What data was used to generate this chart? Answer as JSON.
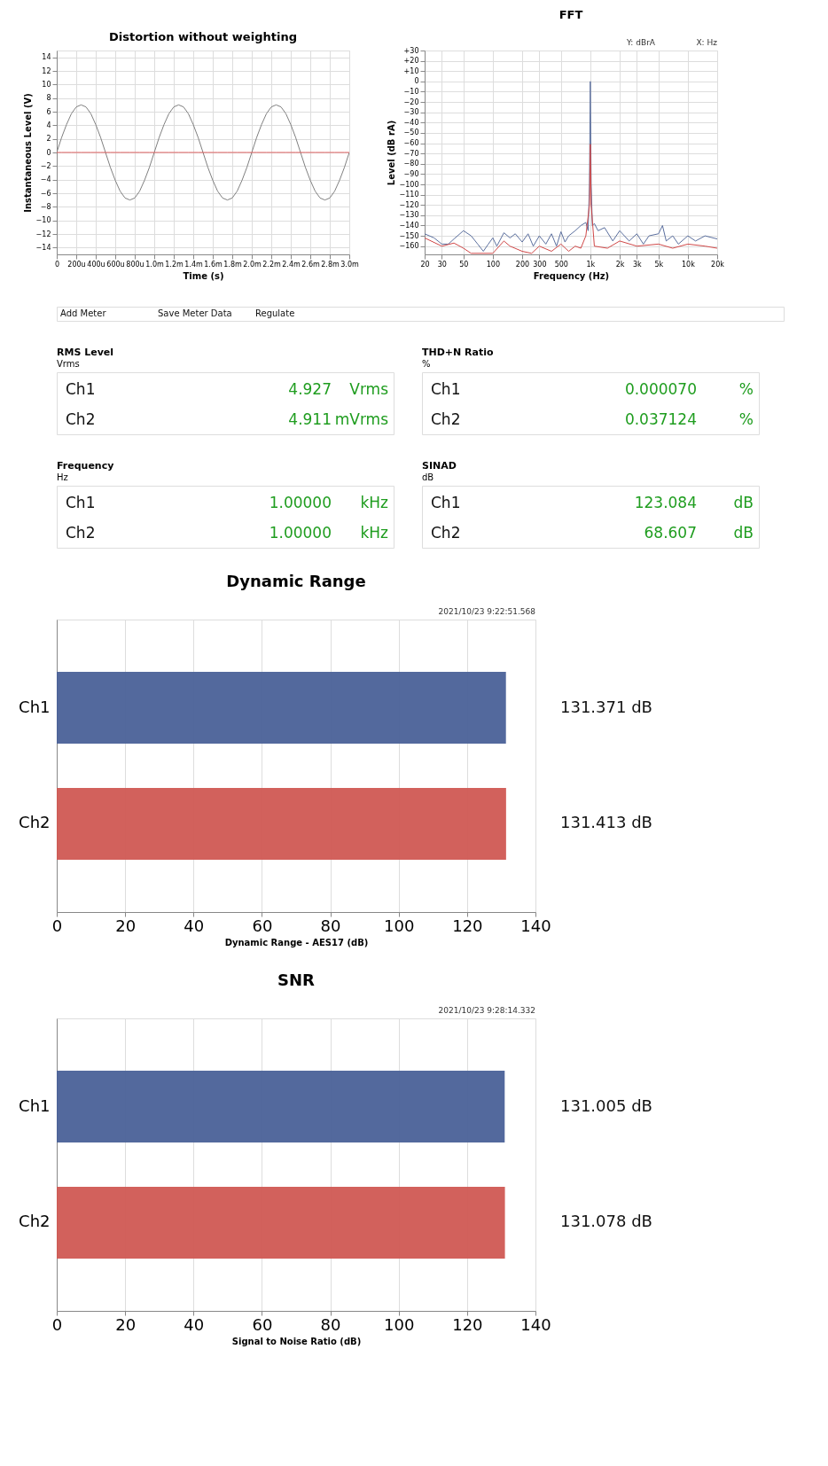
{
  "chart_data": [
    {
      "type": "line",
      "title": "Distortion without weighting",
      "xlabel": "Time (s)",
      "ylabel": "Instantaneous Level (V)",
      "ylim": [
        -15,
        15
      ],
      "grid": true,
      "categories": [
        "0",
        null,
        null,
        null,
        "200u",
        null,
        null,
        null,
        "400u",
        null,
        null,
        null,
        "600u",
        null,
        null,
        null,
        "800u",
        null,
        null,
        null,
        "1.0m",
        null,
        null,
        null,
        "1.2m",
        null,
        null,
        null,
        "1.4m",
        null,
        null,
        null,
        "1.6m",
        null,
        null,
        null,
        "1.8m",
        null,
        null,
        null,
        "2.0m",
        null,
        null,
        null,
        "2.2m",
        null,
        null,
        null,
        "2.4m",
        null,
        null,
        null,
        "2.6m",
        null,
        null,
        null,
        "2.8m",
        null,
        null,
        null,
        "3.0m"
      ],
      "yticks": [
        -14,
        -12,
        -10,
        -8,
        -6,
        -4,
        -2,
        0,
        2,
        4,
        6,
        8,
        10,
        12,
        14
      ],
      "series": [
        {
          "color": "#808080",
          "values": [
            0,
            2.2,
            4.1,
            5.7,
            6.7,
            7,
            6.7,
            5.7,
            4.1,
            2.2,
            0,
            -2.2,
            -4.1,
            -5.7,
            -6.7,
            -7,
            -6.7,
            -5.7,
            -4.1,
            -2.2,
            0,
            2.2,
            4.1,
            5.7,
            6.7,
            7,
            6.7,
            5.7,
            4.1,
            2.2,
            0,
            -2.2,
            -4.1,
            -5.7,
            -6.7,
            -7,
            -6.7,
            -5.7,
            -4.1,
            -2.2,
            0,
            2.2,
            4.1,
            5.7,
            6.7,
            7,
            6.7,
            5.7,
            4.1,
            2.2,
            0,
            -2.2,
            -4.1,
            -5.7,
            -6.7,
            -7,
            -6.7,
            -5.7,
            -4.1,
            -2.2,
            0
          ]
        },
        {
          "color": "#e06060",
          "values": [
            0,
            0,
            0,
            0,
            0,
            0,
            0,
            0,
            0,
            0,
            0,
            0,
            0,
            0,
            0,
            0,
            0,
            0,
            0,
            0,
            0,
            0,
            0,
            0,
            0,
            0,
            0,
            0,
            0,
            0,
            0,
            0,
            0,
            0,
            0,
            0,
            0,
            0,
            0,
            0,
            0,
            0,
            0,
            0,
            0,
            0,
            0,
            0,
            0,
            0,
            0,
            0,
            0,
            0,
            0,
            0,
            0,
            0,
            0,
            0,
            0
          ]
        }
      ]
    },
    {
      "type": "line",
      "title": "FFT",
      "annotations": [
        "X: Hz",
        "Y: dBrA"
      ],
      "xlabel": "Frequency (Hz)",
      "ylabel": "Level (dB rA)",
      "log": "x",
      "xlim": [
        20,
        20000
      ],
      "ylim": [
        -168,
        30
      ],
      "grid": true,
      "xticks": [
        20,
        30,
        50,
        100,
        200,
        300,
        500,
        {
          "value": 1000,
          "label": "1k"
        },
        {
          "value": 2000,
          "label": "2k"
        },
        {
          "value": 3000,
          "label": "3k"
        },
        {
          "value": 5000,
          "label": "5k"
        },
        {
          "value": 10000,
          "label": "10k"
        },
        {
          "value": 20000,
          "label": "20k"
        }
      ],
      "yticks": [
        -160,
        -150,
        -140,
        -130,
        -120,
        -110,
        -100,
        -90,
        -80,
        -70,
        -60,
        -50,
        -40,
        -30,
        -20,
        -10,
        0,
        {
          "value": 10,
          "label": "+10"
        },
        {
          "value": 20,
          "label": "+20"
        },
        {
          "value": 30,
          "label": "+30"
        }
      ],
      "series": [
        {
          "color": "#5b6f9e",
          "x": [
            20,
            25,
            30,
            35,
            40,
            50,
            60,
            70,
            80,
            90,
            100,
            110,
            130,
            150,
            170,
            200,
            230,
            260,
            300,
            350,
            400,
            450,
            500,
            550,
            600,
            700,
            800,
            900,
            950,
            980,
            1000,
            1020,
            1050,
            1100,
            1200,
            1400,
            1700,
            2000,
            2500,
            3000,
            3500,
            4000,
            5000,
            5500,
            6000,
            7000,
            8000,
            10000,
            12000,
            15000,
            20000
          ],
          "values": [
            -148,
            -152,
            -158,
            -158,
            -153,
            -145,
            -150,
            -158,
            -165,
            -158,
            -152,
            -160,
            -147,
            -152,
            -148,
            -156,
            -148,
            -160,
            -150,
            -158,
            -148,
            -160,
            -146,
            -156,
            -150,
            -145,
            -140,
            -137,
            -145,
            -100,
            0,
            -100,
            -140,
            -138,
            -145,
            -142,
            -155,
            -145,
            -155,
            -148,
            -158,
            -150,
            -148,
            -140,
            -155,
            -150,
            -158,
            -150,
            -155,
            -150,
            -153
          ]
        },
        {
          "color": "#d04848",
          "x": [
            20,
            30,
            40,
            50,
            60,
            100,
            130,
            150,
            200,
            250,
            300,
            400,
            500,
            600,
            700,
            800,
            900,
            980,
            1000,
            1020,
            1100,
            1500,
            2000,
            3000,
            5000,
            7000,
            10000,
            15000,
            20000
          ],
          "values": [
            -152,
            -160,
            -157,
            -162,
            -167,
            -167,
            -155,
            -160,
            -165,
            -167,
            -160,
            -165,
            -158,
            -165,
            -160,
            -162,
            -150,
            -120,
            -61,
            -120,
            -160,
            -162,
            -155,
            -160,
            -158,
            -162,
            -158,
            -160,
            -162
          ]
        }
      ]
    },
    {
      "type": "other",
      "annotations": [
        "Add Meter",
        "Save Meter Data",
        "Regulate"
      ]
    },
    {
      "type": "other",
      "title": "RMS Level",
      "subtitle": "Vrms",
      "annotations": [
        "Ch1",
        "4.927",
        "Vrms",
        "Ch2",
        "4.911",
        "mVrms"
      ]
    },
    {
      "type": "other",
      "title": "THD+N Ratio",
      "subtitle": "%",
      "annotations": [
        "Ch1",
        "0.000070",
        "%",
        "Ch2",
        "0.037124",
        "%"
      ]
    },
    {
      "type": "other",
      "title": "Frequency",
      "subtitle": "Hz",
      "annotations": [
        "Ch1",
        "1.00000",
        "kHz",
        "Ch2",
        "1.00000",
        "kHz"
      ]
    },
    {
      "type": "other",
      "title": "SINAD",
      "subtitle": "dB",
      "annotations": [
        "Ch1",
        "123.084",
        "dB",
        "Ch2",
        "68.607",
        "dB"
      ]
    },
    {
      "type": "bar",
      "orientation": "horizontal",
      "title": "Dynamic Range",
      "annotations": [
        "2021/10/23 9:22:51.568"
      ],
      "xlabel": "Dynamic Range - AES17 (dB)",
      "categories": [
        "Ch1",
        "Ch2"
      ],
      "values": [
        131.371,
        131.413
      ],
      "colors": [
        "#4a6198",
        "#d05853"
      ],
      "value_labels": [
        "131.371 dB",
        "131.413 dB"
      ],
      "xlim": [
        0,
        140
      ],
      "xticks": [
        0,
        20,
        40,
        60,
        80,
        100,
        120,
        140
      ],
      "grid": "x"
    },
    {
      "type": "bar",
      "orientation": "horizontal",
      "title": "SNR",
      "annotations": [
        "2021/10/23 9:28:14.332"
      ],
      "xlabel": "Signal to Noise Ratio (dB)",
      "categories": [
        "Ch1",
        "Ch2"
      ],
      "values": [
        131.005,
        131.078
      ],
      "colors": [
        "#4a6198",
        "#d05853"
      ],
      "value_labels": [
        "131.005 dB",
        "131.078 dB"
      ],
      "xlim": [
        0,
        140
      ],
      "xticks": [
        0,
        20,
        40,
        60,
        80,
        100,
        120,
        140
      ],
      "grid": "x"
    }
  ]
}
